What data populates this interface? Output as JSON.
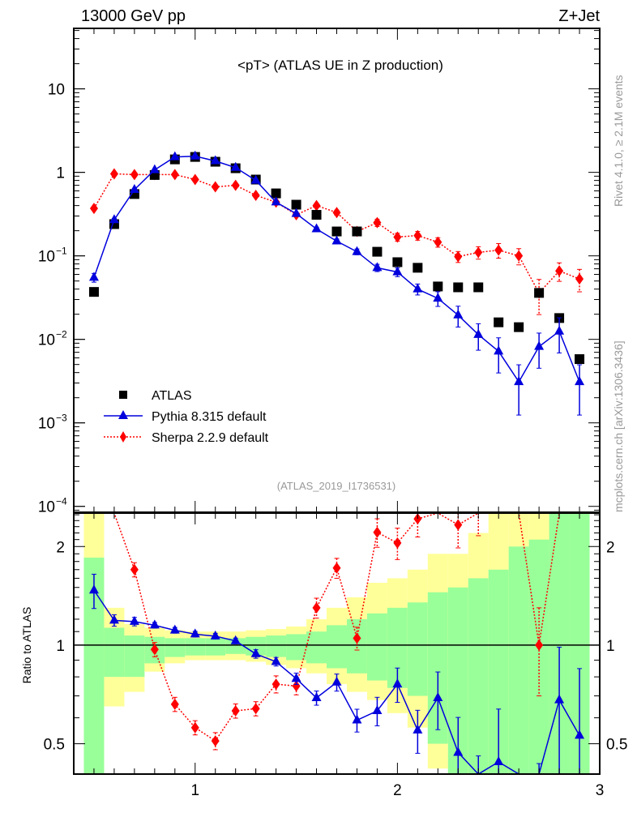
{
  "header": {
    "left": "13000 GeV pp",
    "right": "Z+Jet"
  },
  "side_labels": {
    "top": "Rivet 4.1.0, ≥ 2.1M events",
    "bottom": "mcplots.cern.ch [arXiv:1306.3436]"
  },
  "colors": {
    "atlas": "#000000",
    "pythia": "#0000dd",
    "sherpa": "#ff0000",
    "band_inner": "#99ff99",
    "band_outer": "#ffff99",
    "watermark": "#999999"
  },
  "chart_data": [
    {
      "type": "scatter",
      "title": "<pT> (ATLAS UE in Z production)",
      "analysis_tag": "(ATLAS_2019_I1736531)",
      "xlabel": "",
      "ylabel": "",
      "yscale": "log",
      "xlim": [
        0.4,
        3.0
      ],
      "ylim": [
        8.5e-05,
        53
      ],
      "yticks": [
        {
          "v": 10,
          "label": "10"
        },
        {
          "v": 1,
          "label": "1"
        },
        {
          "v": 0.1,
          "label": "10",
          "exp": "−1"
        },
        {
          "v": 0.01,
          "label": "10",
          "exp": "−2"
        },
        {
          "v": 0.001,
          "label": "10",
          "exp": "−3"
        },
        {
          "v": 0.0001,
          "label": "10",
          "exp": "−4"
        }
      ],
      "legend": {
        "position": "lower-left",
        "entries": [
          "ATLAS",
          "Pythia 8.315 default",
          "Sherpa 2.2.9 default"
        ]
      },
      "x": [
        0.5,
        0.6,
        0.7,
        0.8,
        0.9,
        1.0,
        1.1,
        1.2,
        1.3,
        1.4,
        1.5,
        1.6,
        1.7,
        1.8,
        1.9,
        2.0,
        2.1,
        2.2,
        2.3,
        2.4,
        2.5,
        2.6,
        2.7,
        2.8,
        2.9
      ],
      "series": [
        {
          "name": "ATLAS",
          "marker": "square",
          "values": [
            0.037,
            0.24,
            0.55,
            0.93,
            1.43,
            1.53,
            1.34,
            1.12,
            0.82,
            0.56,
            0.41,
            0.31,
            0.196,
            0.196,
            0.112,
            0.084,
            0.072,
            0.043,
            0.042,
            0.042,
            0.016,
            0.014,
            0.036,
            0.018,
            0.0058
          ]
        },
        {
          "name": "Pythia 8.315 default",
          "marker": "triangle",
          "line": "solid",
          "values": [
            0.055,
            0.27,
            0.62,
            1.07,
            1.53,
            1.56,
            1.37,
            1.14,
            0.8,
            0.44,
            0.32,
            0.21,
            0.15,
            0.112,
            0.072,
            0.064,
            0.04,
            0.031,
            0.0195,
            0.0114,
            0.0072,
            0.0031,
            0.0082,
            0.0125,
            0.0031
          ],
          "err_rel": [
            0.12,
            0.04,
            0.03,
            0.02,
            0.02,
            0.02,
            0.02,
            0.02,
            0.03,
            0.03,
            0.04,
            0.05,
            0.06,
            0.08,
            0.1,
            0.12,
            0.15,
            0.2,
            0.28,
            0.35,
            0.45,
            0.6,
            0.45,
            0.45,
            0.6
          ]
        },
        {
          "name": "Sherpa 2.2.9 default",
          "marker": "diamond",
          "line": "dotted",
          "values": [
            0.37,
            0.96,
            0.94,
            0.94,
            0.94,
            0.82,
            0.67,
            0.7,
            0.53,
            0.44,
            0.31,
            0.4,
            0.33,
            0.196,
            0.25,
            0.168,
            0.175,
            0.146,
            0.098,
            0.11,
            0.117,
            0.1,
            0.036,
            0.066,
            0.053
          ],
          "err_rel": [
            0.03,
            0.03,
            0.03,
            0.03,
            0.03,
            0.03,
            0.03,
            0.03,
            0.04,
            0.04,
            0.05,
            0.06,
            0.07,
            0.08,
            0.1,
            0.11,
            0.12,
            0.13,
            0.15,
            0.17,
            0.2,
            0.22,
            0.45,
            0.25,
            0.3
          ]
        }
      ]
    },
    {
      "type": "scatter",
      "title": "",
      "ylabel": "Ratio to ATLAS",
      "yscale": "log",
      "xlim": [
        0.4,
        3.0
      ],
      "ylim": [
        0.404,
        2.53
      ],
      "xticks": [
        {
          "v": 1,
          "label": "1"
        },
        {
          "v": 2,
          "label": "2"
        },
        {
          "v": 3,
          "label": "3"
        }
      ],
      "yticks": [
        {
          "v": 2,
          "label": "2"
        },
        {
          "v": 1,
          "label": "1"
        },
        {
          "v": 0.5,
          "label": "0.5"
        }
      ],
      "x": [
        0.5,
        0.6,
        0.7,
        0.8,
        0.9,
        1.0,
        1.1,
        1.2,
        1.3,
        1.4,
        1.5,
        1.6,
        1.7,
        1.8,
        1.9,
        2.0,
        2.1,
        2.2,
        2.3,
        2.4,
        2.5,
        2.6,
        2.7,
        2.8,
        2.9
      ],
      "bands": {
        "inner_up": [
          1.85,
          1.13,
          1.07,
          1.06,
          1.05,
          1.05,
          1.05,
          1.05,
          1.06,
          1.07,
          1.08,
          1.1,
          1.15,
          1.2,
          1.25,
          1.3,
          1.35,
          1.45,
          1.5,
          1.6,
          1.7,
          2.0,
          2.1,
          2.6,
          2.6
        ],
        "inner_down": [
          0.3,
          0.8,
          0.8,
          0.88,
          0.92,
          0.93,
          0.93,
          0.94,
          0.93,
          0.92,
          0.9,
          0.88,
          0.85,
          0.82,
          0.78,
          0.74,
          0.7,
          0.5,
          0.4,
          0.35,
          0.3,
          0.3,
          0.3,
          0.3,
          0.3
        ],
        "outer_up": [
          2.6,
          1.3,
          1.16,
          1.13,
          1.11,
          1.1,
          1.1,
          1.1,
          1.11,
          1.12,
          1.14,
          1.2,
          1.3,
          1.4,
          1.55,
          1.6,
          1.7,
          1.9,
          1.9,
          2.2,
          2.6,
          2.6,
          2.6,
          2.4,
          2.6
        ],
        "outer_down": [
          0.3,
          0.65,
          0.72,
          0.83,
          0.88,
          0.9,
          0.9,
          0.9,
          0.89,
          0.87,
          0.85,
          0.82,
          0.76,
          0.72,
          0.68,
          0.62,
          0.56,
          0.42,
          0.38,
          0.3,
          0.3,
          0.3,
          0.45,
          0.3,
          0.3
        ]
      },
      "series": [
        {
          "name": "Pythia 8.315 default",
          "values": [
            1.47,
            1.19,
            1.18,
            1.15,
            1.11,
            1.08,
            1.065,
            1.03,
            0.94,
            0.89,
            0.79,
            0.69,
            0.77,
            0.59,
            0.63,
            0.76,
            0.55,
            0.69,
            0.47,
            0.34,
            0.44,
            0.25,
            0.3,
            0.68,
            0.53
          ],
          "err_rel": [
            0.12,
            0.04,
            0.03,
            0.02,
            0.02,
            0.02,
            0.02,
            0.02,
            0.03,
            0.03,
            0.04,
            0.05,
            0.06,
            0.08,
            0.1,
            0.12,
            0.15,
            0.2,
            0.28,
            0.35,
            0.45,
            0.6,
            0.45,
            0.45,
            0.6
          ]
        },
        {
          "name": "Sherpa 2.2.9 default",
          "values": [
            10.0,
            4.0,
            1.7,
            0.97,
            0.66,
            0.56,
            0.51,
            0.63,
            0.64,
            0.76,
            0.75,
            1.3,
            1.72,
            1.05,
            2.21,
            2.05,
            2.43,
            3.4,
            2.33,
            2.6,
            7.3,
            7.1,
            1.0,
            3.7,
            9.1
          ],
          "err_rel": [
            0.03,
            0.03,
            0.05,
            0.05,
            0.05,
            0.05,
            0.06,
            0.05,
            0.05,
            0.06,
            0.06,
            0.07,
            0.07,
            0.08,
            0.1,
            0.11,
            0.12,
            0.13,
            0.15,
            0.17,
            0.2,
            0.22,
            0.3,
            0.25,
            0.3
          ]
        }
      ]
    }
  ]
}
